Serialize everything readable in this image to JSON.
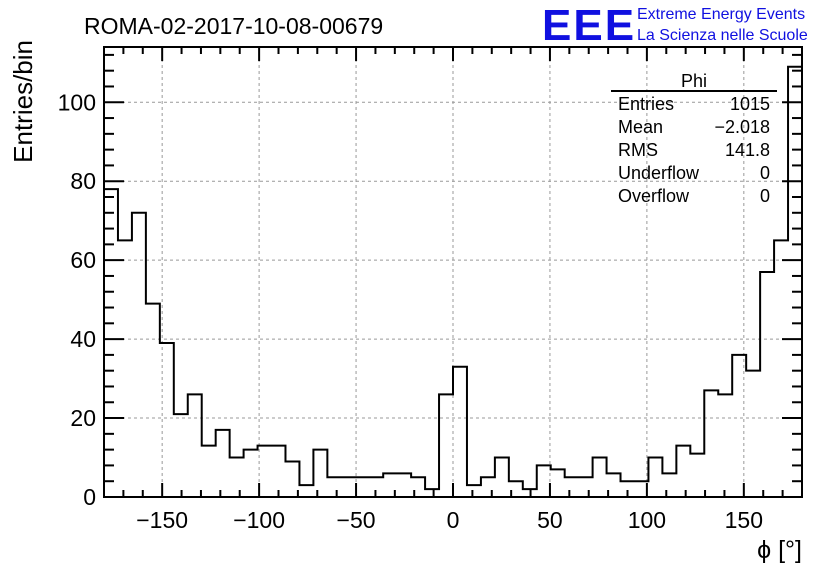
{
  "branding": {
    "logo_text": "EEE",
    "line1": "Extreme Energy Events",
    "line2": "La Scienza nelle Scuole",
    "color": "#1010e0"
  },
  "chart_data": {
    "type": "histogram",
    "title": "ROMA-02-2017-10-08-00679",
    "xlabel": "ϕ [°]",
    "ylabel": "Entries/bin",
    "xlim": [
      -180,
      180
    ],
    "ylim": [
      0,
      114
    ],
    "bin_width": 7.2,
    "bin_edges_start": -180,
    "values": [
      78,
      65,
      72,
      49,
      39,
      21,
      26,
      13,
      17,
      10,
      12,
      13,
      13,
      9,
      3,
      12,
      5,
      5,
      5,
      5,
      6,
      6,
      5,
      2,
      26,
      33,
      3,
      5,
      10,
      4,
      2,
      8,
      7,
      5,
      5,
      10,
      6,
      4,
      4,
      10,
      6,
      13,
      11,
      27,
      26,
      36,
      32,
      57,
      65,
      109
    ],
    "xticks": [
      -150,
      -100,
      -50,
      0,
      50,
      100,
      150
    ],
    "xtick_labels": [
      "−150",
      "−100",
      "−50",
      "0",
      "50",
      "100",
      "150"
    ],
    "yticks": [
      0,
      20,
      40,
      60,
      80,
      100
    ],
    "ytick_labels": [
      "0",
      "20",
      "40",
      "60",
      "80",
      "100"
    ],
    "grid": true,
    "line_color": "#000000",
    "stats_box": {
      "title": "Phi",
      "rows": [
        {
          "label": "Entries",
          "value": "1015"
        },
        {
          "label": "Mean",
          "value": "−2.018"
        },
        {
          "label": "RMS",
          "value": "141.8"
        },
        {
          "label": "Underflow",
          "value": "0"
        },
        {
          "label": "Overflow",
          "value": "0"
        }
      ]
    }
  }
}
